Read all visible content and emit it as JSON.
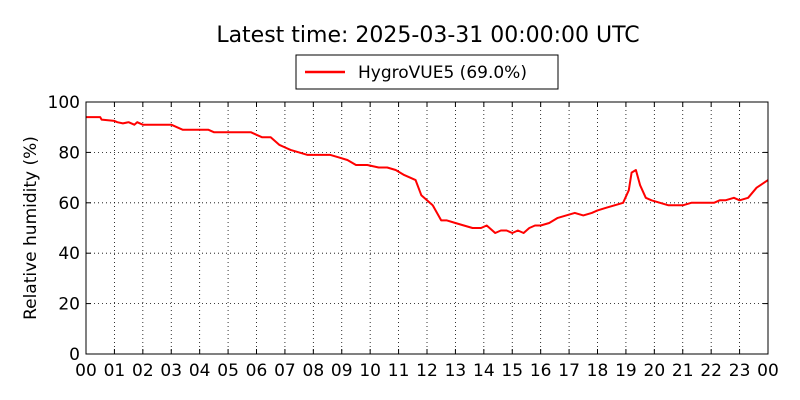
{
  "chart_data": {
    "type": "line",
    "title": "Latest time: 2025-03-31 00:00:00 UTC",
    "xlabel": "",
    "ylabel": "Relative humidity (%)",
    "xlim": [
      0,
      24
    ],
    "ylim": [
      0,
      100
    ],
    "grid": true,
    "legend_position": "top-center",
    "x_tick_labels": [
      "00",
      "01",
      "02",
      "03",
      "04",
      "05",
      "06",
      "07",
      "08",
      "09",
      "10",
      "11",
      "12",
      "13",
      "14",
      "15",
      "16",
      "17",
      "18",
      "19",
      "20",
      "21",
      "22",
      "23",
      "00"
    ],
    "y_tick_labels": [
      "0",
      "20",
      "40",
      "60",
      "80",
      "100"
    ],
    "series": [
      {
        "name": "HygroVUE5 (69.0%)",
        "color": "#ff0000",
        "x": [
          0.0,
          0.5,
          0.55,
          1.0,
          1.1,
          1.3,
          1.5,
          1.7,
          1.8,
          2.0,
          2.5,
          3.0,
          3.2,
          3.4,
          3.7,
          4.0,
          4.3,
          4.5,
          4.8,
          5.0,
          5.5,
          5.8,
          6.0,
          6.2,
          6.5,
          6.8,
          7.0,
          7.2,
          7.5,
          7.8,
          8.0,
          8.3,
          8.6,
          8.9,
          9.2,
          9.5,
          9.9,
          10.3,
          10.6,
          10.9,
          11.2,
          11.4,
          11.6,
          11.8,
          12.0,
          12.2,
          12.4,
          12.5,
          12.7,
          13.0,
          13.3,
          13.6,
          13.9,
          14.1,
          14.3,
          14.4,
          14.6,
          14.8,
          15.0,
          15.2,
          15.4,
          15.6,
          15.8,
          16.0,
          16.3,
          16.6,
          16.9,
          17.2,
          17.5,
          17.8,
          18.0,
          18.3,
          18.6,
          18.9,
          19.1,
          19.2,
          19.35,
          19.5,
          19.7,
          19.9,
          20.2,
          20.5,
          20.8,
          21.0,
          21.3,
          21.6,
          21.9,
          22.1,
          22.3,
          22.5,
          22.8,
          23.0,
          23.3,
          23.6,
          24.0
        ],
        "y": [
          94,
          94,
          93,
          92.5,
          92,
          91.5,
          92,
          91,
          92,
          91,
          91,
          91,
          90,
          89,
          89,
          89,
          89,
          88,
          88,
          88,
          88,
          88,
          87,
          86,
          86,
          83,
          82,
          81,
          80,
          79,
          79,
          79,
          79,
          78,
          77,
          75,
          75,
          74,
          74,
          73,
          71,
          70,
          69,
          63,
          61,
          59,
          55,
          53,
          53,
          52,
          51,
          50,
          50,
          51,
          49,
          48,
          49,
          49,
          48,
          49,
          48,
          50,
          51,
          51,
          52,
          54,
          55,
          56,
          55,
          56,
          57,
          58,
          59,
          60,
          65,
          72,
          73,
          67,
          62,
          61,
          60,
          59,
          59,
          59,
          60,
          60,
          60,
          60,
          61,
          61,
          62,
          61,
          62,
          66,
          69
        ]
      }
    ]
  }
}
